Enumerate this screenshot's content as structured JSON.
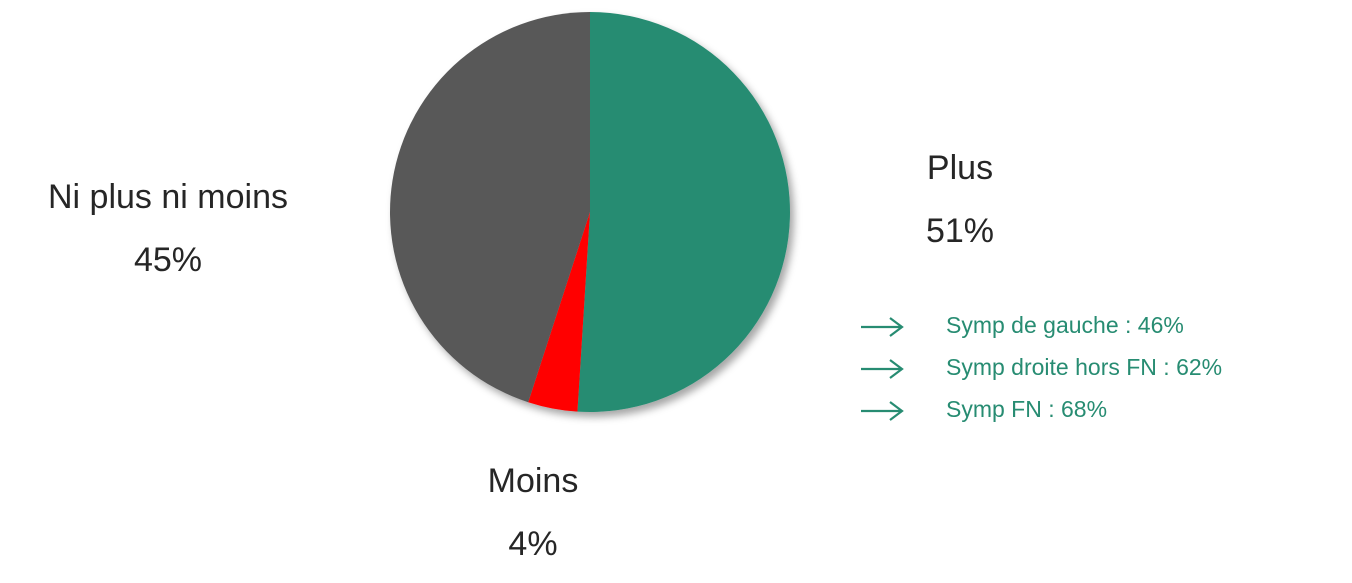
{
  "chart_data": {
    "type": "pie",
    "categories": [
      "Plus",
      "Moins",
      "Ni plus ni moins"
    ],
    "values": [
      51,
      4,
      45
    ],
    "value_labels": [
      "51%",
      "4%",
      "45%"
    ],
    "colors": [
      "#278c72",
      "#ff0000",
      "#595959"
    ],
    "annotations": [
      "Symp de gauche : 46%",
      "Symp droite hors FN : 62%",
      "Symp FN : 68%"
    ]
  }
}
